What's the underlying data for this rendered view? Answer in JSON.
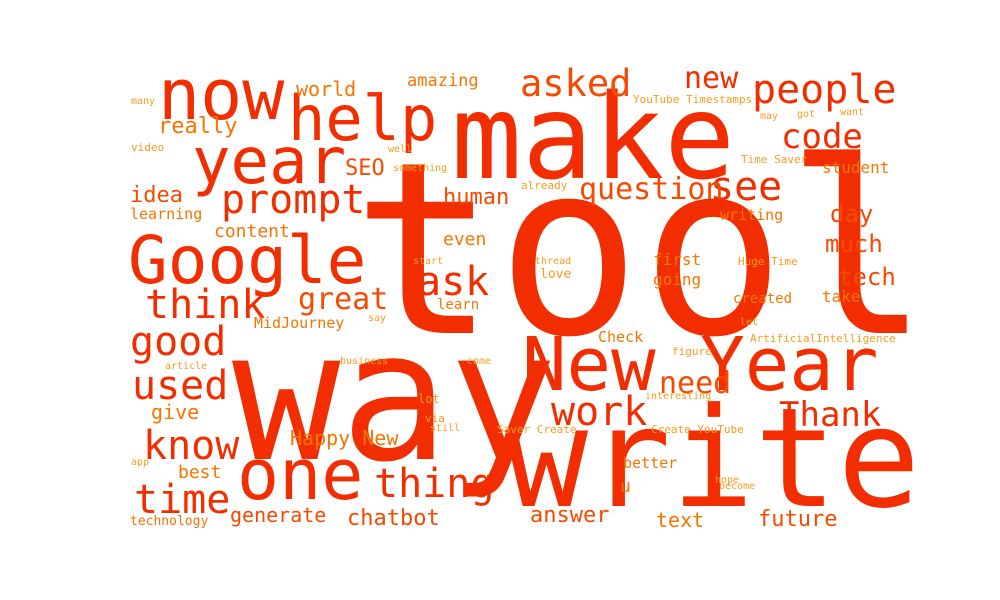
{
  "palette": {
    "red": "#f22e00",
    "orange_red": "#f54a00",
    "orange": "#f77400",
    "light_orange": "#f99a1e"
  },
  "words": [
    "tool",
    "way",
    "make",
    "write",
    "New Year",
    "one",
    "now",
    "help",
    "year",
    "Google",
    "people",
    "asked",
    "new",
    "code",
    "see",
    "prompt",
    "question",
    "think",
    "ask",
    "great",
    "work",
    "Thank",
    "thing",
    "good",
    "used",
    "know",
    "time",
    "need",
    "tech",
    "day",
    "much",
    "world",
    "amazing",
    "really",
    "SEO",
    "idea",
    "learning",
    "human",
    "content",
    "even",
    "MidJourney",
    "Happy New",
    "give",
    "best",
    "generate",
    "chatbot",
    "answer",
    "text",
    "future",
    "better",
    "u",
    "first",
    "going",
    "student",
    "writing",
    "take",
    "created",
    "Check",
    "interesting",
    "Create YouTube",
    "YouTube Timestamps",
    "Time Saver",
    "Huge Time",
    "ArtificialIntelligence",
    "let",
    "figure",
    "hope",
    "become",
    "thread",
    "start",
    "love",
    "learn",
    "already",
    "something",
    "well",
    "many",
    "video",
    "app",
    "technology",
    "article",
    "business",
    "come",
    "say",
    "lot",
    "via",
    "still",
    "Saver Create",
    "may",
    "got",
    "want"
  ]
}
